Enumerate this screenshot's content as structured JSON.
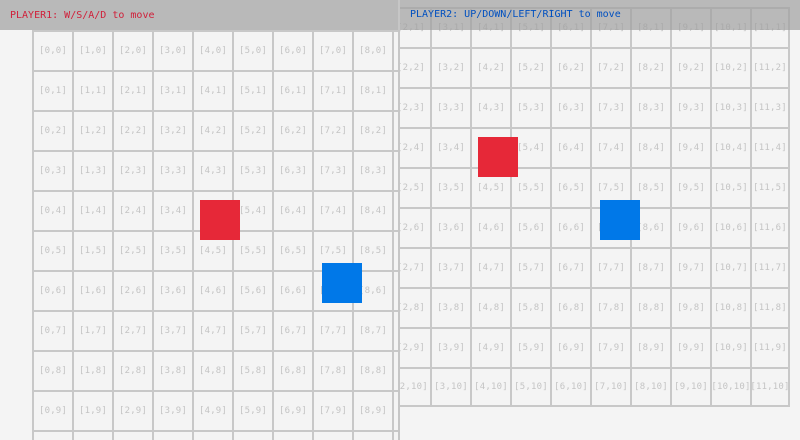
{
  "player1_view": {
    "header": "PLAYER1: W/S/A/D to move",
    "header_color": "#d0203a",
    "grid_cols": [
      0,
      1,
      2,
      3,
      4,
      5,
      6,
      7,
      8,
      9
    ],
    "grid_rows": [
      0,
      1,
      2,
      3,
      4,
      5,
      6,
      7,
      8,
      9,
      10
    ],
    "players": [
      {
        "name": "player1",
        "color": "#e62838",
        "cell": [
          4.2,
          4.25
        ]
      },
      {
        "name": "player2",
        "color": "#0078e8",
        "cell": [
          7.25,
          5.825
        ]
      }
    ]
  },
  "player2_view": {
    "header": "PLAYER2: UP/DOWN/LEFT/RIGHT to move",
    "header_color": "#0050c0",
    "grid_cols": [
      2,
      3,
      4,
      5,
      6,
      7,
      8,
      9,
      10,
      11
    ],
    "grid_rows": [
      1,
      2,
      3,
      4,
      5,
      6,
      7,
      8,
      9,
      10
    ],
    "players": [
      {
        "name": "player1",
        "color": "#e62838",
        "cell": [
          4.2,
          4.25
        ]
      },
      {
        "name": "player2",
        "color": "#0078e8",
        "cell": [
          7.25,
          5.825
        ]
      }
    ]
  }
}
